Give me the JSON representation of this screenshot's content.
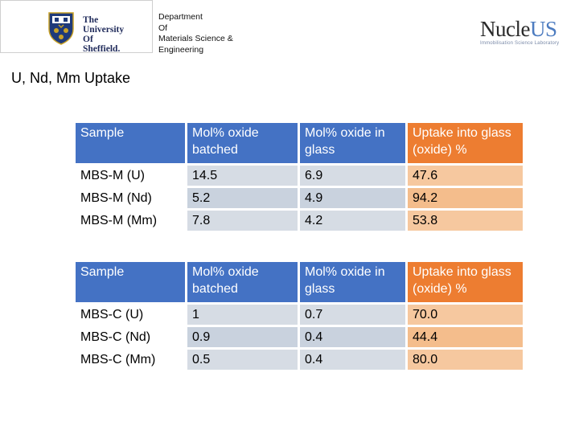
{
  "header": {
    "university_lines": [
      "The",
      "University",
      "Of",
      "Sheffield."
    ],
    "department_lines": [
      "Department",
      "Of",
      "Materials Science &",
      "Engineering"
    ],
    "partner_brand_main": "Nucle",
    "partner_brand_accent": "US",
    "partner_tagline": "Immobilisation Science Laboratory"
  },
  "page_title": "U, Nd, Mm Uptake",
  "tables": [
    {
      "headers": [
        "Sample",
        "Mol% oxide batched",
        "Mol% oxide in glass",
        "Uptake into glass (oxide) %"
      ],
      "rows": [
        [
          "MBS-M (U)",
          "14.5",
          "6.9",
          "47.6"
        ],
        [
          "MBS-M (Nd)",
          "5.2",
          "4.9",
          "94.2"
        ],
        [
          "MBS-M (Mm)",
          "7.8",
          "4.2",
          "53.8"
        ]
      ]
    },
    {
      "headers": [
        "Sample",
        "Mol% oxide batched",
        "Mol% oxide in glass",
        "Uptake into glass (oxide) %"
      ],
      "rows": [
        [
          "MBS-C (U)",
          "1",
          "0.7",
          "70.0"
        ],
        [
          "MBS-C (Nd)",
          "0.9",
          "0.4",
          "44.4"
        ],
        [
          "MBS-C (Mm)",
          "0.5",
          "0.4",
          "80.0"
        ]
      ]
    }
  ],
  "colors": {
    "header_blue": "#4472c4",
    "header_orange": "#ed7d31",
    "cell_blue": "#d6dce4",
    "cell_orange": "#f6c89f"
  }
}
